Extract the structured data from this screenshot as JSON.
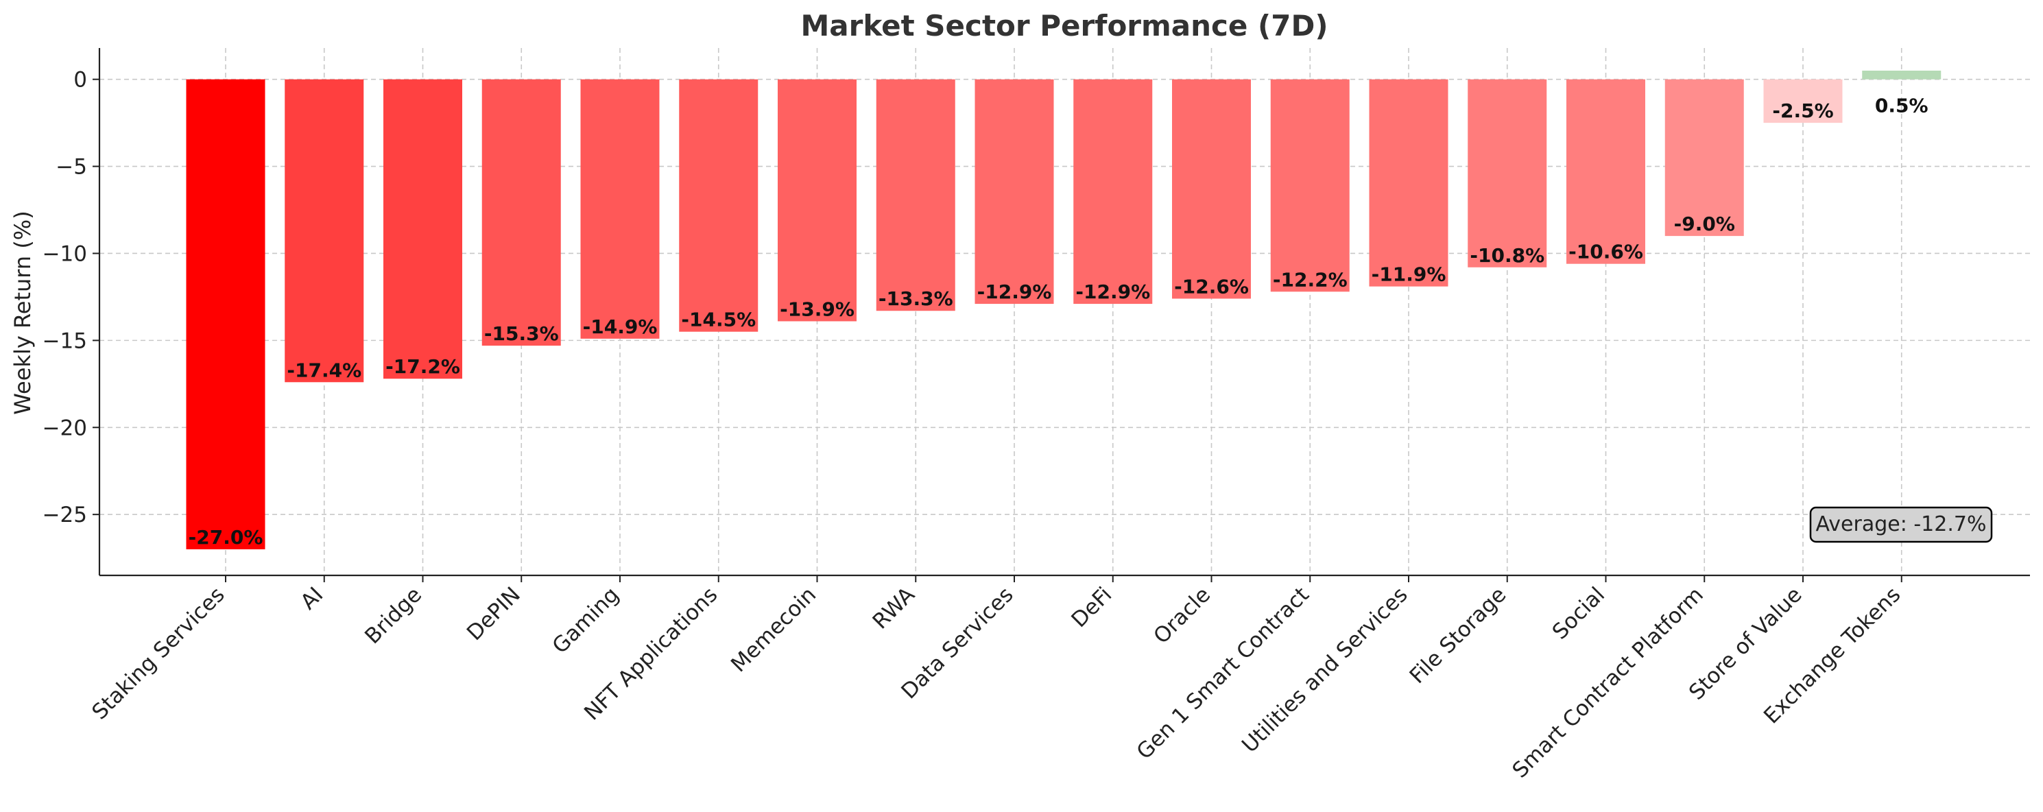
{
  "chart_data": {
    "type": "bar",
    "title": "Market Sector Performance (7D)",
    "xlabel": "",
    "ylabel": "Weekly Return (%)",
    "categories": [
      "Staking Services",
      "AI",
      "Bridge",
      "DePIN",
      "Gaming",
      "NFT Applications",
      "Memecoin",
      "RWA",
      "Data Services",
      "DeFi",
      "Oracle",
      "Gen 1 Smart Contract",
      "Utilities and Services",
      "File Storage",
      "Social",
      "Smart Contract Platform",
      "Store of Value",
      "Exchange Tokens"
    ],
    "values": [
      -27.0,
      -17.4,
      -17.2,
      -15.3,
      -14.9,
      -14.5,
      -13.9,
      -13.3,
      -12.9,
      -12.9,
      -12.6,
      -12.2,
      -11.9,
      -10.8,
      -10.6,
      -9.0,
      -2.5,
      0.5
    ],
    "data_labels": [
      "-27.0%",
      "-17.4%",
      "-17.2%",
      "-15.3%",
      "-14.9%",
      "-14.5%",
      "-13.9%",
      "-13.3%",
      "-12.9%",
      "-12.9%",
      "-12.6%",
      "-12.2%",
      "-11.9%",
      "-10.8%",
      "-10.6%",
      "-9.0%",
      "-2.5%",
      "0.5%"
    ],
    "colors": [
      "#ff0000",
      "#ff3f3f",
      "#ff4141",
      "#ff5454",
      "#ff5858",
      "#ff5b5b",
      "#ff6161",
      "#ff6666",
      "#ff6a6a",
      "#ff6a6a",
      "#ff6c6c",
      "#ff7070",
      "#ff7272",
      "#ff7c7c",
      "#ff7e7e",
      "#ff8d8d",
      "#ffcaca",
      "#b5dab5"
    ],
    "ylim": [
      -28.5,
      1.8
    ],
    "yticks": [
      0,
      -5,
      -10,
      -15,
      -20,
      -25
    ],
    "ytick_labels": [
      "0",
      "−5",
      "−10",
      "−15",
      "−20",
      "−25"
    ],
    "grid": true,
    "annotation": "Average: -12.7%"
  }
}
